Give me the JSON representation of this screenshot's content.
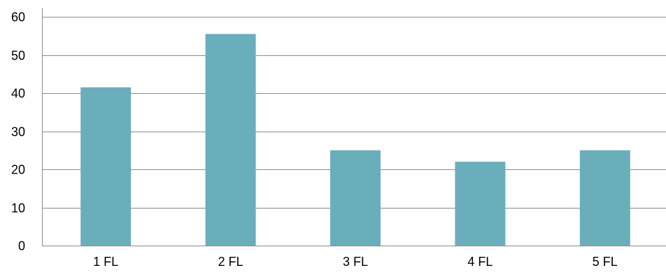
{
  "chart_data": {
    "type": "bar",
    "title": "",
    "xlabel": "",
    "ylabel": "",
    "categories": [
      "1 FL",
      "2 FL",
      "3 FL",
      "4 FL",
      "5 FL"
    ],
    "values": [
      41.5,
      55.5,
      25,
      22,
      25
    ],
    "ylim": [
      0,
      60
    ],
    "yticks": [
      "0",
      "10",
      "20",
      "30",
      "40",
      "50",
      "60"
    ],
    "grid": true,
    "legend": "none",
    "colors": {
      "bar": "#6aaebb",
      "grid": "#8c8c8c",
      "axis": "#8c8c8c",
      "text": "#000000"
    }
  }
}
